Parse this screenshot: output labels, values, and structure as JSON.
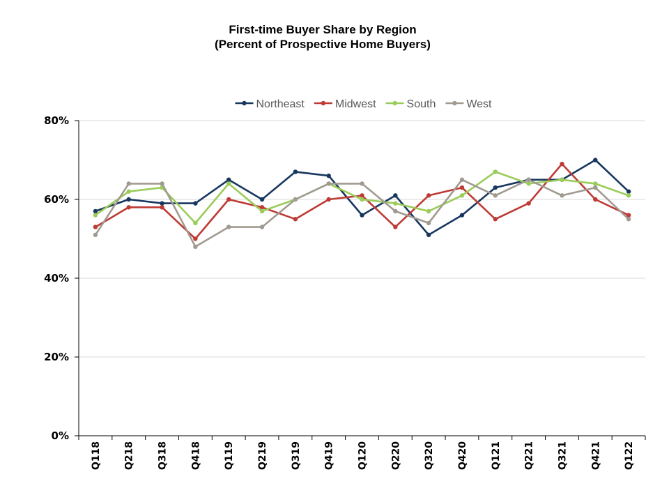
{
  "chart_data": {
    "type": "line",
    "title": "First-time Buyer Share by Region",
    "subtitle": "(Percent of Prospective Home Buyers)",
    "xlabel": "",
    "ylabel": "",
    "categories": [
      "Q118",
      "Q218",
      "Q318",
      "Q418",
      "Q119",
      "Q219",
      "Q319",
      "Q419",
      "Q120",
      "Q220",
      "Q320",
      "Q420",
      "Q121",
      "Q221",
      "Q321",
      "Q421",
      "Q122"
    ],
    "ylim": [
      0,
      80
    ],
    "yticks": [
      0,
      20,
      40,
      60,
      80
    ],
    "ytick_labels": [
      "0%",
      "20%",
      "40%",
      "60%",
      "80%"
    ],
    "grid": true,
    "legend_position": "top",
    "series": [
      {
        "name": "Northeast",
        "color": "#17375e",
        "values": [
          57,
          60,
          59,
          59,
          65,
          60,
          67,
          66,
          56,
          61,
          51,
          56,
          63,
          65,
          65,
          70,
          62
        ]
      },
      {
        "name": "Midwest",
        "color": "#be3a34",
        "values": [
          53,
          58,
          58,
          50,
          60,
          58,
          55,
          60,
          61,
          53,
          61,
          63,
          55,
          59,
          69,
          60,
          56
        ]
      },
      {
        "name": "South",
        "color": "#9bcc5a",
        "values": [
          56,
          62,
          63,
          54,
          64,
          57,
          60,
          64,
          60,
          59,
          57,
          61,
          67,
          64,
          65,
          64,
          61
        ]
      },
      {
        "name": "West",
        "color": "#a09a91",
        "values": [
          51,
          64,
          64,
          48,
          53,
          53,
          60,
          64,
          64,
          57,
          54,
          65,
          61,
          65,
          61,
          63,
          55
        ]
      }
    ]
  }
}
